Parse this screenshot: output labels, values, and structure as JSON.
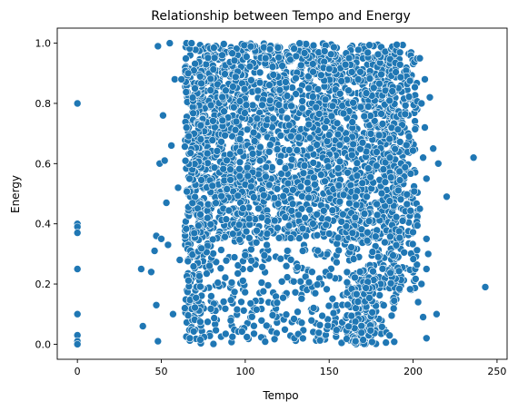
{
  "chart_data": {
    "type": "scatter",
    "title": "Relationship between Tempo and Energy",
    "xlabel": "Tempo",
    "ylabel": "Energy",
    "xlim": [
      -12,
      256
    ],
    "ylim": [
      -0.05,
      1.05
    ],
    "xticks": [
      0,
      50,
      100,
      150,
      200,
      250
    ],
    "yticks": [
      0.0,
      0.2,
      0.4,
      0.6,
      0.8,
      1.0
    ],
    "xtick_labels": [
      "0",
      "50",
      "100",
      "150",
      "200",
      "250"
    ],
    "ytick_labels": [
      "0.0",
      "0.2",
      "0.4",
      "0.6",
      "0.8",
      "1.0"
    ],
    "grid": false,
    "legend": "none",
    "marker_color": "#1f77b4",
    "marker_edge_color": "#ffffff",
    "series": [
      {
        "approximate": true,
        "points": [
          [
            0,
            0.8
          ],
          [
            0,
            0.4
          ],
          [
            0,
            0.39
          ],
          [
            0,
            0.37
          ],
          [
            0,
            0.25
          ],
          [
            0,
            0.1
          ],
          [
            0,
            0.03
          ],
          [
            0,
            0.01
          ],
          [
            0,
            0.0
          ],
          [
            38,
            0.25
          ],
          [
            39,
            0.06
          ],
          [
            44,
            0.24
          ],
          [
            46,
            0.31
          ],
          [
            47,
            0.36
          ],
          [
            47,
            0.13
          ],
          [
            48,
            0.01
          ],
          [
            48,
            0.99
          ],
          [
            49,
            0.6
          ],
          [
            50,
            0.35
          ],
          [
            51,
            0.76
          ],
          [
            52,
            0.61
          ],
          [
            53,
            0.47
          ],
          [
            54,
            0.33
          ],
          [
            55,
            1.0
          ],
          [
            56,
            0.66
          ],
          [
            57,
            0.1
          ],
          [
            58,
            0.88
          ],
          [
            60,
            0.52
          ],
          [
            61,
            0.28
          ],
          [
            62,
            0.88
          ],
          [
            65,
            1.0
          ],
          [
            66,
            0.9
          ],
          [
            68,
            1.0
          ],
          [
            70,
            0.85
          ],
          [
            64,
            0.12
          ],
          [
            67,
            0.02
          ],
          [
            204,
            0.95
          ],
          [
            205,
            0.8
          ],
          [
            206,
            0.62
          ],
          [
            207,
            0.72
          ],
          [
            208,
            0.55
          ],
          [
            208,
            0.35
          ],
          [
            208,
            0.25
          ],
          [
            208,
            0.02
          ],
          [
            206,
            0.09
          ],
          [
            210,
            0.82
          ],
          [
            212,
            0.65
          ],
          [
            214,
            0.1
          ],
          [
            215,
            0.6
          ],
          [
            220,
            0.49
          ],
          [
            236,
            0.62
          ],
          [
            243,
            0.19
          ],
          [
            204,
            0.45
          ],
          [
            203,
            0.14
          ],
          [
            207,
            0.88
          ],
          [
            205,
            0.2
          ],
          [
            209,
            0.3
          ]
        ]
      }
    ]
  }
}
